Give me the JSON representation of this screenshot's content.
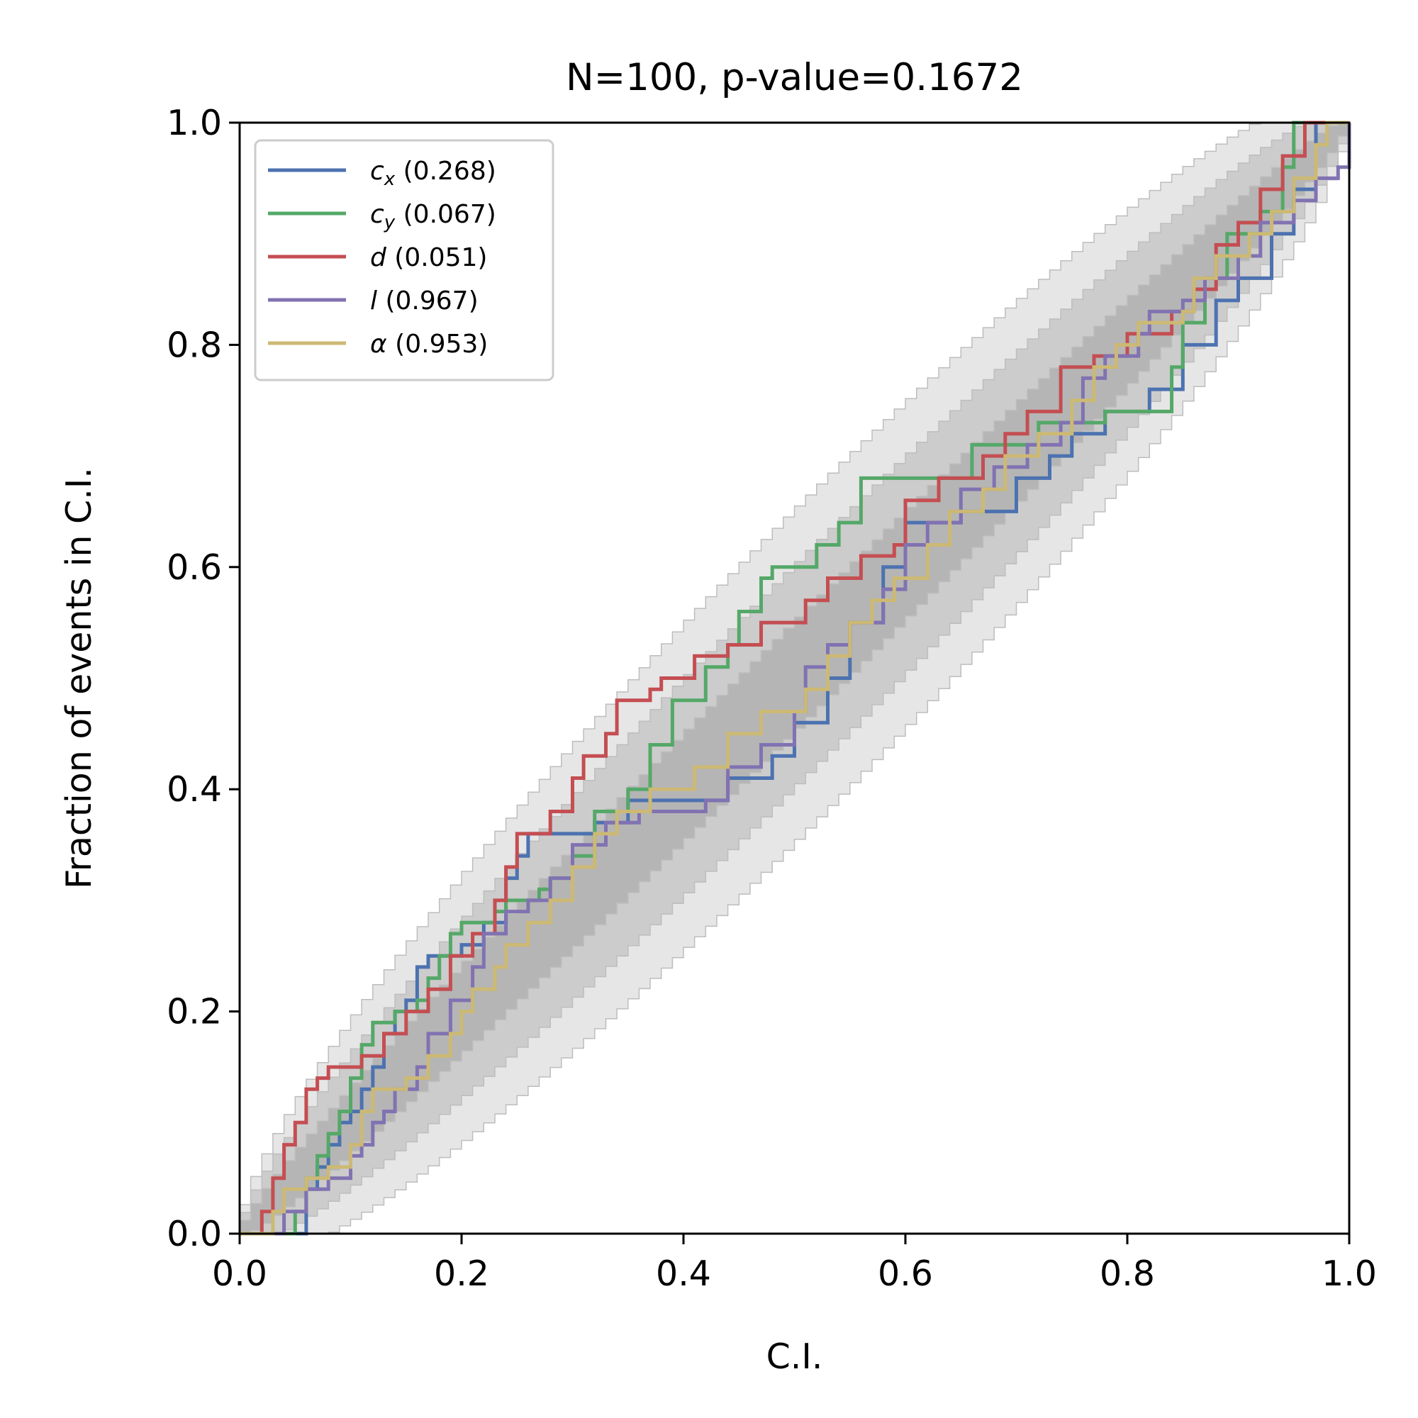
{
  "chart_data": {
    "type": "line",
    "title": "N=100, p-value=0.1672",
    "xlabel": "C.I.",
    "ylabel": "Fraction of events in C.I.",
    "xlim": [
      0,
      1
    ],
    "ylim": [
      0,
      1
    ],
    "xticks": [
      "0.0",
      "0.2",
      "0.4",
      "0.6",
      "0.8",
      "1.0"
    ],
    "yticks": [
      "0.0",
      "0.2",
      "0.4",
      "0.6",
      "0.8",
      "1.0"
    ],
    "grid": false,
    "legend_position": "top-left",
    "bands": {
      "description_levels": [
        "1-sigma",
        "2-sigma",
        "3-sigma"
      ],
      "colors": [
        "#b5b5b5",
        "#cccccc",
        "#e6e6e6"
      ],
      "n_events": 100
    },
    "series": [
      {
        "symbol": "c",
        "subscript": "x",
        "score": "(0.268)",
        "color": "#4c72b0",
        "points": [
          [
            0,
            0
          ],
          [
            0.05,
            0
          ],
          [
            0.06,
            0.04
          ],
          [
            0.07,
            0.06
          ],
          [
            0.08,
            0.08
          ],
          [
            0.09,
            0.1
          ],
          [
            0.1,
            0.11
          ],
          [
            0.11,
            0.13
          ],
          [
            0.12,
            0.15
          ],
          [
            0.13,
            0.18
          ],
          [
            0.14,
            0.2
          ],
          [
            0.15,
            0.21
          ],
          [
            0.16,
            0.24
          ],
          [
            0.17,
            0.25
          ],
          [
            0.2,
            0.26
          ],
          [
            0.22,
            0.28
          ],
          [
            0.24,
            0.32
          ],
          [
            0.25,
            0.34
          ],
          [
            0.26,
            0.36
          ],
          [
            0.3,
            0.36
          ],
          [
            0.32,
            0.37
          ],
          [
            0.35,
            0.39
          ],
          [
            0.42,
            0.39
          ],
          [
            0.44,
            0.41
          ],
          [
            0.48,
            0.43
          ],
          [
            0.5,
            0.46
          ],
          [
            0.53,
            0.5
          ],
          [
            0.55,
            0.55
          ],
          [
            0.58,
            0.6
          ],
          [
            0.6,
            0.64
          ],
          [
            0.65,
            0.65
          ],
          [
            0.68,
            0.65
          ],
          [
            0.7,
            0.68
          ],
          [
            0.73,
            0.7
          ],
          [
            0.75,
            0.72
          ],
          [
            0.78,
            0.74
          ],
          [
            0.82,
            0.76
          ],
          [
            0.85,
            0.8
          ],
          [
            0.88,
            0.84
          ],
          [
            0.9,
            0.86
          ],
          [
            0.93,
            0.9
          ],
          [
            0.95,
            0.94
          ],
          [
            0.97,
            1
          ],
          [
            1,
            1
          ]
        ]
      },
      {
        "symbol": "c",
        "subscript": "y",
        "score": "(0.067)",
        "color": "#55a868",
        "points": [
          [
            0,
            0
          ],
          [
            0.04,
            0
          ],
          [
            0.05,
            0.02
          ],
          [
            0.06,
            0.05
          ],
          [
            0.07,
            0.07
          ],
          [
            0.08,
            0.09
          ],
          [
            0.09,
            0.11
          ],
          [
            0.1,
            0.14
          ],
          [
            0.11,
            0.17
          ],
          [
            0.12,
            0.19
          ],
          [
            0.14,
            0.2
          ],
          [
            0.16,
            0.21
          ],
          [
            0.17,
            0.23
          ],
          [
            0.18,
            0.25
          ],
          [
            0.19,
            0.27
          ],
          [
            0.2,
            0.28
          ],
          [
            0.23,
            0.29
          ],
          [
            0.24,
            0.3
          ],
          [
            0.27,
            0.31
          ],
          [
            0.28,
            0.32
          ],
          [
            0.3,
            0.34
          ],
          [
            0.32,
            0.38
          ],
          [
            0.35,
            0.4
          ],
          [
            0.37,
            0.44
          ],
          [
            0.39,
            0.48
          ],
          [
            0.42,
            0.51
          ],
          [
            0.44,
            0.53
          ],
          [
            0.45,
            0.56
          ],
          [
            0.47,
            0.59
          ],
          [
            0.48,
            0.6
          ],
          [
            0.52,
            0.62
          ],
          [
            0.54,
            0.64
          ],
          [
            0.56,
            0.68
          ],
          [
            0.64,
            0.68
          ],
          [
            0.66,
            0.71
          ],
          [
            0.72,
            0.73
          ],
          [
            0.78,
            0.74
          ],
          [
            0.82,
            0.74
          ],
          [
            0.84,
            0.78
          ],
          [
            0.85,
            0.82
          ],
          [
            0.87,
            0.86
          ],
          [
            0.89,
            0.9
          ],
          [
            0.92,
            0.92
          ],
          [
            0.94,
            0.96
          ],
          [
            0.95,
            1
          ],
          [
            1,
            1
          ]
        ]
      },
      {
        "symbol": "d",
        "subscript": "",
        "score": "(0.051)",
        "color": "#c44e52",
        "points": [
          [
            0,
            0
          ],
          [
            0.01,
            0
          ],
          [
            0.02,
            0.02
          ],
          [
            0.03,
            0.05
          ],
          [
            0.04,
            0.08
          ],
          [
            0.05,
            0.1
          ],
          [
            0.06,
            0.13
          ],
          [
            0.07,
            0.14
          ],
          [
            0.08,
            0.15
          ],
          [
            0.11,
            0.16
          ],
          [
            0.13,
            0.18
          ],
          [
            0.15,
            0.2
          ],
          [
            0.17,
            0.22
          ],
          [
            0.19,
            0.25
          ],
          [
            0.21,
            0.27
          ],
          [
            0.23,
            0.3
          ],
          [
            0.24,
            0.33
          ],
          [
            0.25,
            0.36
          ],
          [
            0.28,
            0.38
          ],
          [
            0.3,
            0.41
          ],
          [
            0.31,
            0.43
          ],
          [
            0.33,
            0.45
          ],
          [
            0.34,
            0.48
          ],
          [
            0.37,
            0.49
          ],
          [
            0.38,
            0.5
          ],
          [
            0.41,
            0.52
          ],
          [
            0.44,
            0.53
          ],
          [
            0.47,
            0.55
          ],
          [
            0.51,
            0.57
          ],
          [
            0.53,
            0.59
          ],
          [
            0.56,
            0.61
          ],
          [
            0.59,
            0.62
          ],
          [
            0.6,
            0.66
          ],
          [
            0.63,
            0.68
          ],
          [
            0.67,
            0.7
          ],
          [
            0.69,
            0.72
          ],
          [
            0.71,
            0.74
          ],
          [
            0.74,
            0.78
          ],
          [
            0.77,
            0.79
          ],
          [
            0.8,
            0.81
          ],
          [
            0.84,
            0.83
          ],
          [
            0.86,
            0.85
          ],
          [
            0.88,
            0.89
          ],
          [
            0.9,
            0.91
          ],
          [
            0.92,
            0.94
          ],
          [
            0.94,
            0.97
          ],
          [
            0.96,
            1
          ],
          [
            1,
            1
          ]
        ]
      },
      {
        "symbol": "l",
        "subscript": "",
        "score": "(0.967)",
        "color": "#8172b2",
        "points": [
          [
            0,
            0
          ],
          [
            0.03,
            0
          ],
          [
            0.04,
            0.02
          ],
          [
            0.06,
            0.04
          ],
          [
            0.08,
            0.05
          ],
          [
            0.1,
            0.07
          ],
          [
            0.11,
            0.08
          ],
          [
            0.12,
            0.1
          ],
          [
            0.13,
            0.11
          ],
          [
            0.14,
            0.13
          ],
          [
            0.16,
            0.15
          ],
          [
            0.17,
            0.18
          ],
          [
            0.19,
            0.21
          ],
          [
            0.21,
            0.24
          ],
          [
            0.22,
            0.27
          ],
          [
            0.24,
            0.29
          ],
          [
            0.26,
            0.3
          ],
          [
            0.28,
            0.32
          ],
          [
            0.3,
            0.35
          ],
          [
            0.33,
            0.37
          ],
          [
            0.36,
            0.38
          ],
          [
            0.42,
            0.39
          ],
          [
            0.44,
            0.42
          ],
          [
            0.47,
            0.44
          ],
          [
            0.5,
            0.47
          ],
          [
            0.51,
            0.51
          ],
          [
            0.53,
            0.53
          ],
          [
            0.55,
            0.55
          ],
          [
            0.58,
            0.58
          ],
          [
            0.6,
            0.62
          ],
          [
            0.62,
            0.64
          ],
          [
            0.65,
            0.67
          ],
          [
            0.68,
            0.69
          ],
          [
            0.71,
            0.71
          ],
          [
            0.74,
            0.73
          ],
          [
            0.76,
            0.77
          ],
          [
            0.78,
            0.79
          ],
          [
            0.81,
            0.81
          ],
          [
            0.82,
            0.83
          ],
          [
            0.85,
            0.84
          ],
          [
            0.87,
            0.86
          ],
          [
            0.9,
            0.88
          ],
          [
            0.92,
            0.91
          ],
          [
            0.95,
            0.93
          ],
          [
            0.97,
            0.95
          ],
          [
            0.99,
            0.96
          ],
          [
            1,
            1
          ]
        ]
      },
      {
        "symbol": "α",
        "subscript": "",
        "score": "(0.953)",
        "color": "#ccb974",
        "points": [
          [
            0,
            0
          ],
          [
            0.02,
            0
          ],
          [
            0.03,
            0.02
          ],
          [
            0.04,
            0.04
          ],
          [
            0.06,
            0.05
          ],
          [
            0.08,
            0.06
          ],
          [
            0.1,
            0.08
          ],
          [
            0.11,
            0.11
          ],
          [
            0.12,
            0.13
          ],
          [
            0.15,
            0.14
          ],
          [
            0.17,
            0.16
          ],
          [
            0.19,
            0.18
          ],
          [
            0.2,
            0.2
          ],
          [
            0.21,
            0.22
          ],
          [
            0.23,
            0.24
          ],
          [
            0.24,
            0.26
          ],
          [
            0.26,
            0.28
          ],
          [
            0.28,
            0.3
          ],
          [
            0.3,
            0.33
          ],
          [
            0.32,
            0.36
          ],
          [
            0.34,
            0.38
          ],
          [
            0.37,
            0.4
          ],
          [
            0.41,
            0.42
          ],
          [
            0.44,
            0.45
          ],
          [
            0.47,
            0.47
          ],
          [
            0.51,
            0.49
          ],
          [
            0.53,
            0.52
          ],
          [
            0.55,
            0.55
          ],
          [
            0.57,
            0.57
          ],
          [
            0.59,
            0.59
          ],
          [
            0.62,
            0.62
          ],
          [
            0.64,
            0.65
          ],
          [
            0.67,
            0.67
          ],
          [
            0.69,
            0.7
          ],
          [
            0.72,
            0.72
          ],
          [
            0.75,
            0.75
          ],
          [
            0.77,
            0.78
          ],
          [
            0.79,
            0.8
          ],
          [
            0.81,
            0.82
          ],
          [
            0.85,
            0.83
          ],
          [
            0.86,
            0.86
          ],
          [
            0.88,
            0.88
          ],
          [
            0.91,
            0.9
          ],
          [
            0.93,
            0.92
          ],
          [
            0.95,
            0.95
          ],
          [
            0.97,
            0.98
          ],
          [
            0.98,
            1
          ],
          [
            1,
            1
          ]
        ]
      }
    ]
  }
}
